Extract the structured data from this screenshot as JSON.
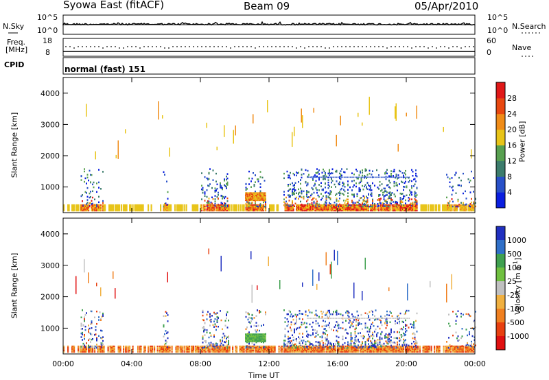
{
  "header": {
    "station": "Syowa East (fitACF)",
    "beam": "Beam 09",
    "date": "05/Apr/2010"
  },
  "strip": {
    "nsky_label": "N.Sky",
    "nsky_ticks": [
      "10^5",
      "10^0"
    ],
    "nsearch_label": "N.Search",
    "nsearch_ticks": [
      "10^5",
      "10^0"
    ],
    "freq_label_1": "Freq.",
    "freq_label_2": "[MHz]",
    "freq_ticks": [
      "18",
      "8"
    ],
    "nave_label": "Nave",
    "nave_ticks": [
      "60",
      "0"
    ],
    "cpid_label": "CPID",
    "cpid_value": "normal (fast) 151"
  },
  "chart_data": [
    {
      "type": "heatmap",
      "name": "Power",
      "ylabel": "Slant Range [km]",
      "yticks": [
        "1000",
        "2000",
        "3000",
        "4000"
      ],
      "ylim": [
        180,
        4500
      ],
      "colorbar_label": "Power [dB]",
      "colorbar_ticks": [
        "4",
        "8",
        "12",
        "16",
        "20",
        "24",
        "28"
      ],
      "colors": [
        "#0a1ee0",
        "#2850c8",
        "#3c7c6c",
        "#58a050",
        "#e8c418",
        "#f08c18",
        "#e84810",
        "#e01818"
      ]
    },
    {
      "type": "heatmap",
      "name": "Velocity",
      "ylabel": "Slant Range [km]",
      "yticks": [
        "1000",
        "2000",
        "3000",
        "4000"
      ],
      "ylim": [
        180,
        4500
      ],
      "colorbar_label": "Velocity [m s^-1]",
      "colorbar_ticks": [
        "1000",
        "500",
        "100",
        "25",
        "-25",
        "-100",
        "-500",
        "-1000"
      ],
      "colors": [
        "#2030c0",
        "#3070c8",
        "#40a050",
        "#70c040",
        "#c0c0c0",
        "#f0b040",
        "#f08020",
        "#e84010",
        "#e01010"
      ]
    }
  ],
  "xaxis": {
    "ticks": [
      "00:00",
      "04:00",
      "08:00",
      "12:00",
      "16:00",
      "20:00",
      "00:00"
    ],
    "label": "Time UT"
  }
}
